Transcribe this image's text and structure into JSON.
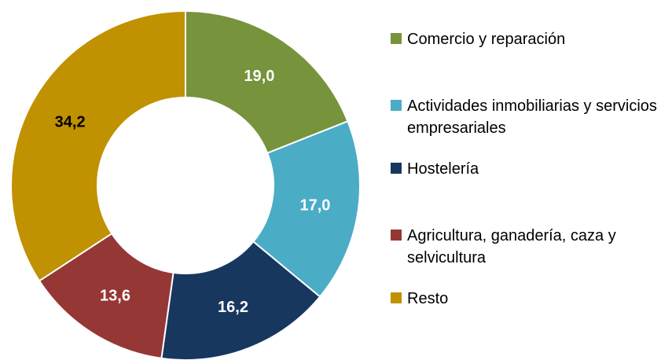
{
  "chart_data": {
    "type": "donut",
    "categories": [
      "Comercio y reparación",
      "Actividades inmobiliarias y servicios empresariales",
      "Hostelería",
      "Agricultura, ganadería, caza y selvicultura",
      "Resto"
    ],
    "values": [
      19.0,
      17.0,
      16.2,
      13.6,
      34.2
    ],
    "value_labels": [
      "19,0",
      "17,0",
      "16,2",
      "13,6",
      "34,2"
    ],
    "colors": [
      "#77933c",
      "#4bacc6",
      "#17375e",
      "#953735",
      "#c09100"
    ],
    "label_colors": [
      "#ffffff",
      "#ffffff",
      "#ffffff",
      "#ffffff",
      "#000000"
    ],
    "legend": "right"
  }
}
